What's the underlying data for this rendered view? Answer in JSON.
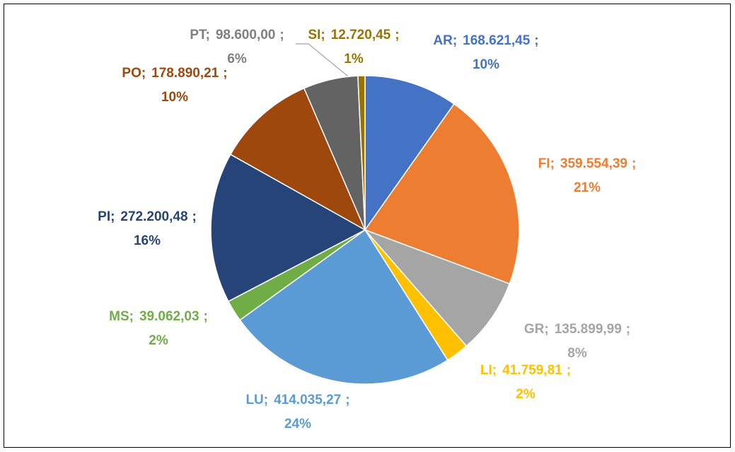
{
  "chart_data": {
    "type": "pie",
    "categories": [
      "AR",
      "FI",
      "GR",
      "LI",
      "LU",
      "MS",
      "PI",
      "PO",
      "PT",
      "SI"
    ],
    "values": [
      168621.45,
      359554.39,
      135899.99,
      41759.81,
      414035.27,
      39062.03,
      272200.48,
      178890.21,
      98600.0,
      12720.45
    ],
    "value_labels": [
      "168.621,45",
      "359.554,39",
      "135.899,99",
      "41.759,81",
      "414.035,27",
      "39.062,03",
      "272.200,48",
      "178.890,21",
      "98.600,00",
      "12.720,45"
    ],
    "percent_labels": [
      "10%",
      "21%",
      "8%",
      "2%",
      "24%",
      "2%",
      "16%",
      "10%",
      "6%",
      "1%"
    ],
    "separator": ";",
    "colors": [
      "#4472c4",
      "#ed7d31",
      "#a5a5a5",
      "#ffc000",
      "#5b9bd5",
      "#70ad47",
      "#264478",
      "#9e480e",
      "#636363",
      "#997300"
    ]
  }
}
